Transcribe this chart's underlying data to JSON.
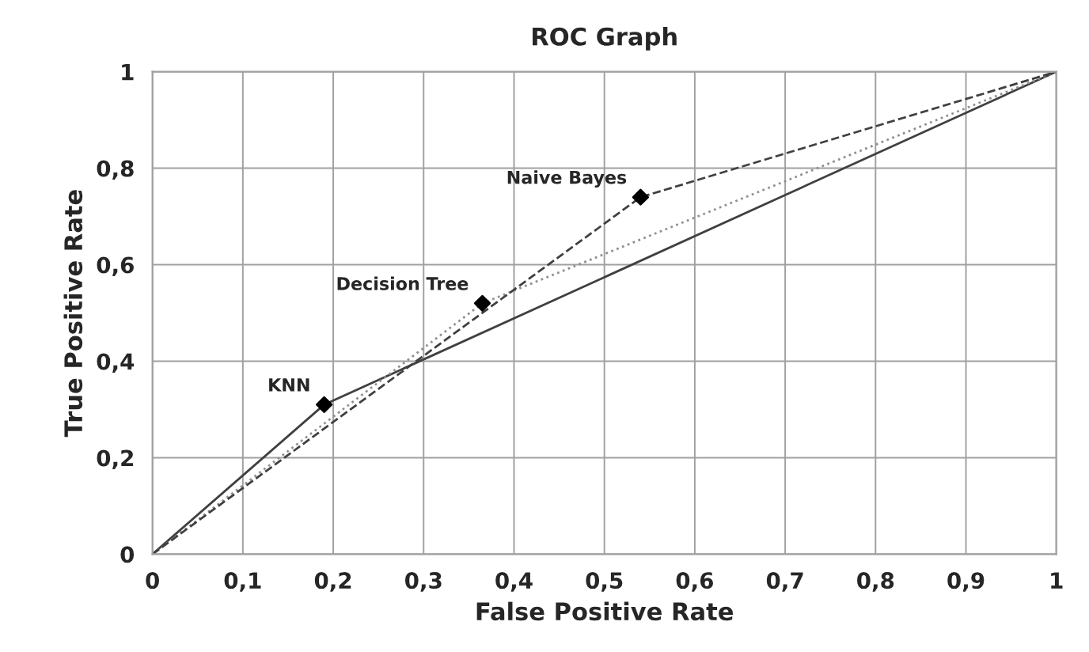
{
  "chart_data": {
    "type": "line",
    "title": "ROC Graph",
    "xlabel": "False Positive Rate",
    "ylabel": "True Positive Rate",
    "series": [
      {
        "name": "KNN",
        "color": "#404040",
        "line_style": "solid",
        "x": [
          0,
          0.19,
          1
        ],
        "values": [
          0,
          0.31,
          1
        ]
      },
      {
        "name": "Decision Tree",
        "color": "#909090",
        "line_style": "dotted",
        "x": [
          0,
          0.365,
          1
        ],
        "values": [
          0,
          0.52,
          1
        ]
      },
      {
        "name": "Naive Bayes",
        "color": "#404040",
        "line_style": "dashed",
        "x": [
          0,
          0.54,
          1
        ],
        "values": [
          0,
          0.74,
          1
        ]
      },
      {
        "type": "scatter",
        "color": "#000000",
        "marker": "diamond",
        "x": [
          0.19,
          0.365,
          0.54
        ],
        "values": [
          0.31,
          0.52,
          0.74
        ]
      }
    ],
    "xlim": [
      0,
      1
    ],
    "ylim": [
      0,
      1
    ],
    "xticks": [
      0,
      {
        "value": 0.1,
        "label": "0,1"
      },
      {
        "value": 0.2,
        "label": "0,2"
      },
      {
        "value": 0.3,
        "label": "0,3"
      },
      {
        "value": 0.4,
        "label": "0,4"
      },
      {
        "value": 0.5,
        "label": "0,5"
      },
      {
        "value": 0.6,
        "label": "0,6"
      },
      {
        "value": 0.7,
        "label": "0,7"
      },
      {
        "value": 0.8,
        "label": "0,8"
      },
      {
        "value": 0.9,
        "label": "0,9"
      },
      1
    ],
    "yticks": [
      0,
      {
        "value": 0.2,
        "label": "0,2"
      },
      {
        "value": 0.4,
        "label": "0,4"
      },
      {
        "value": 0.6,
        "label": "0,6"
      },
      {
        "value": 0.8,
        "label": "0,8"
      },
      1
    ],
    "grid": true,
    "legend": false
  }
}
